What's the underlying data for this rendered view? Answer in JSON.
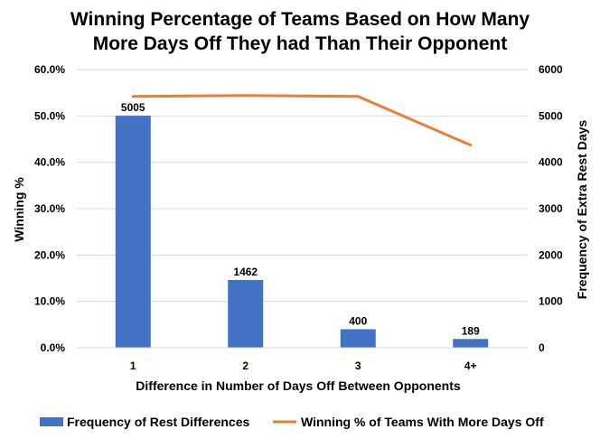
{
  "chart_data": {
    "type": "bar",
    "title_line1": "Winning Percentage of Teams Based on How Many",
    "title_line2": "More Days Off They had Than Their Opponent",
    "xlabel": "Difference in Number of Days Off Between Opponents",
    "ylabel_left": "Winning %",
    "ylabel_right": "Frequency of Extra Rest Days",
    "categories": [
      "1",
      "2",
      "3",
      "4+"
    ],
    "y_left_ticks": [
      "0.0%",
      "10.0%",
      "20.0%",
      "30.0%",
      "40.0%",
      "50.0%",
      "60.0%"
    ],
    "y_right_ticks": [
      "0",
      "1000",
      "2000",
      "3000",
      "4000",
      "5000",
      "6000"
    ],
    "y_left_lim": [
      0,
      60
    ],
    "y_right_lim": [
      0,
      6000
    ],
    "grid": true,
    "legend_position": "bottom",
    "series": [
      {
        "name": "Frequency of Rest Differences",
        "type": "bar",
        "axis": "right",
        "color": "#4472C4",
        "values": [
          5005,
          1462,
          400,
          189
        ],
        "labels": [
          "5005",
          "1462",
          "400",
          "189"
        ]
      },
      {
        "name": "Winning % of Teams With More Days Off",
        "type": "line",
        "axis": "left",
        "color": "#ED7D31",
        "values": [
          54.2,
          54.4,
          54.2,
          43.7
        ]
      }
    ]
  }
}
